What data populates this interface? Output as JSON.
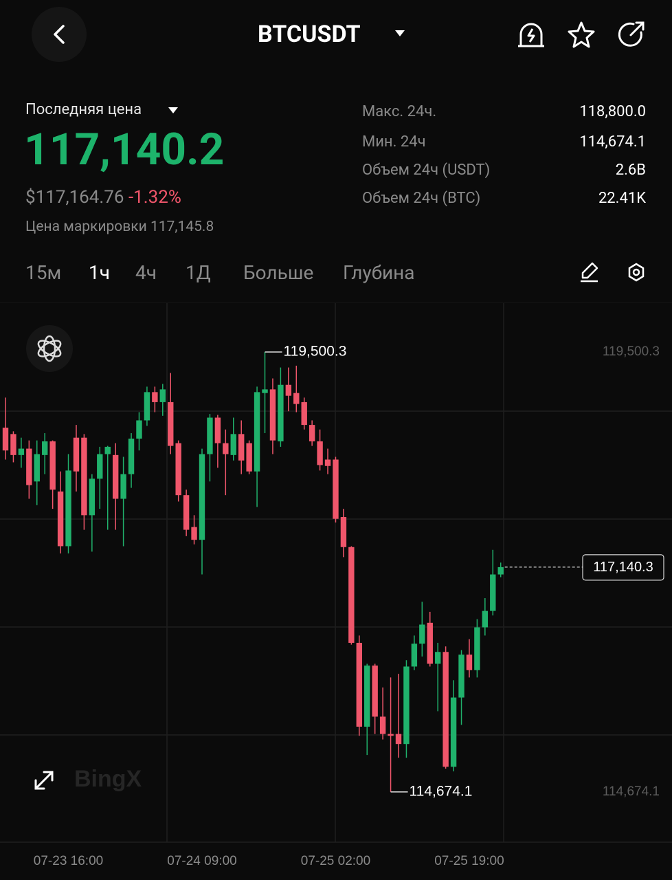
{
  "header": {
    "symbol": "BTCUSDT"
  },
  "ticker": {
    "price_label": "Последняя цена",
    "last_price": "117,140.2",
    "usd_price": "$117,164.76",
    "change": "-1.32%",
    "mark_price": "Цена маркировки 117,145.8"
  },
  "stats": [
    {
      "label": "Макс. 24ч.",
      "value": "118,800.0"
    },
    {
      "label": "Мин. 24ч",
      "value": "114,674.1"
    },
    {
      "label": "Объем 24ч (USDT)",
      "value": "2.6B"
    },
    {
      "label": "Объем 24ч (BTC)",
      "value": "22.41K"
    }
  ],
  "tabs": [
    "15м",
    "1ч",
    "4ч",
    "1Д",
    "Больше",
    "Глубина"
  ],
  "watermark": "BingX",
  "chart_data": {
    "type": "candlestick",
    "up_color": "#20b26c",
    "down_color": "#f0566b",
    "categories": [
      null,
      null,
      null,
      null,
      null,
      null,
      null,
      null,
      "07-23 16:00",
      null,
      null,
      null,
      null,
      null,
      null,
      null,
      null,
      null,
      null,
      null,
      null,
      null,
      null,
      null,
      null,
      "07-24 09:00",
      null,
      null,
      null,
      null,
      null,
      null,
      null,
      null,
      null,
      null,
      null,
      null,
      null,
      null,
      null,
      null,
      "07-25 02:00",
      null,
      null,
      null,
      null,
      null,
      null,
      null,
      null,
      null,
      null,
      null,
      null,
      null,
      null,
      null,
      null,
      "07-25 19:00",
      null,
      null,
      null,
      null
    ],
    "open": [
      118670,
      118600,
      118370,
      118440,
      118080,
      118370,
      118520,
      117970,
      117370,
      118560,
      118560,
      117710,
      118110,
      118380,
      118370,
      117890,
      118160,
      118550,
      118750,
      119060,
      118950,
      118950,
      118500,
      117930,
      117580,
      117440,
      118380,
      118780,
      118500,
      118370,
      118600,
      118500,
      118190,
      119050,
      119090,
      118520,
      119140,
      119050,
      118950,
      118700,
      118520,
      118320,
      118320,
      117690,
      117360,
      116310,
      115390,
      116060,
      115500,
      115310,
      115310,
      115200,
      116050,
      116300,
      116530,
      116080,
      116210,
      114950,
      115710,
      116180,
      116010,
      116480,
      116660,
      117060
    ],
    "high": [
      119000,
      118630,
      118560,
      118530,
      118530,
      118610,
      118530,
      118190,
      118380,
      118700,
      118600,
      118160,
      118460,
      118470,
      118500,
      118350,
      118610,
      118840,
      119120,
      119120,
      119150,
      119270,
      118530,
      117990,
      117710,
      118440,
      118820,
      118810,
      118650,
      118780,
      118750,
      118530,
      119120,
      119500.3,
      119210,
      119330,
      119330,
      119350,
      119000,
      118750,
      118650,
      118440,
      118350,
      117780,
      117370,
      116390,
      116080,
      116080,
      115820,
      115930,
      115970,
      116120,
      116390,
      116760,
      116650,
      116310,
      116270,
      115900,
      116230,
      116350,
      116570,
      116800,
      117330,
      117190
    ],
    "low": [
      118320,
      118290,
      118230,
      117890,
      117820,
      118160,
      117780,
      117290,
      117290,
      117970,
      117550,
      117310,
      117780,
      117550,
      117550,
      117370,
      118010,
      118420,
      118690,
      118840,
      118800,
      118380,
      117860,
      117480,
      117390,
      117060,
      118080,
      118230,
      117930,
      118310,
      118160,
      118160,
      117800,
      118610,
      118380,
      118460,
      118850,
      118840,
      118650,
      118470,
      118200,
      118160,
      117630,
      117250,
      116290,
      115290,
      115080,
      115310,
      115250,
      114674.1,
      115050,
      115050,
      116010,
      116160,
      116050,
      115560,
      114930,
      114900,
      115410,
      115930,
      115930,
      116390,
      116610,
      117030
    ],
    "close": [
      118420,
      118370,
      118440,
      118040,
      118380,
      118520,
      117990,
      117370,
      118200,
      118190,
      117710,
      118110,
      118380,
      118460,
      117890,
      118160,
      118550,
      118750,
      119060,
      118950,
      119090,
      118470,
      117930,
      117550,
      117440,
      118380,
      118780,
      118500,
      118380,
      118600,
      118310,
      118190,
      119060,
      119090,
      118530,
      119140,
      119020,
      118930,
      118700,
      118520,
      118260,
      118250,
      117670,
      117360,
      116310,
      115390,
      116060,
      115500,
      115310,
      115290,
      115200,
      116050,
      116300,
      116510,
      116080,
      116210,
      114950,
      115710,
      116180,
      116010,
      116480,
      116660,
      117060,
      117140.3
    ],
    "ylim": [
      114123,
      120028
    ],
    "yticks": [
      {
        "value": 119500.3,
        "label": "119,500.3"
      },
      {
        "value": 114674.1,
        "label": "114,674.1"
      }
    ],
    "high_annotation": {
      "value": 119500.3,
      "label": "119,500.3"
    },
    "low_annotation": {
      "value": 114674.1,
      "label": "114,674.1"
    },
    "last_price": {
      "value": 117140.3,
      "label": "117,140.3"
    }
  }
}
